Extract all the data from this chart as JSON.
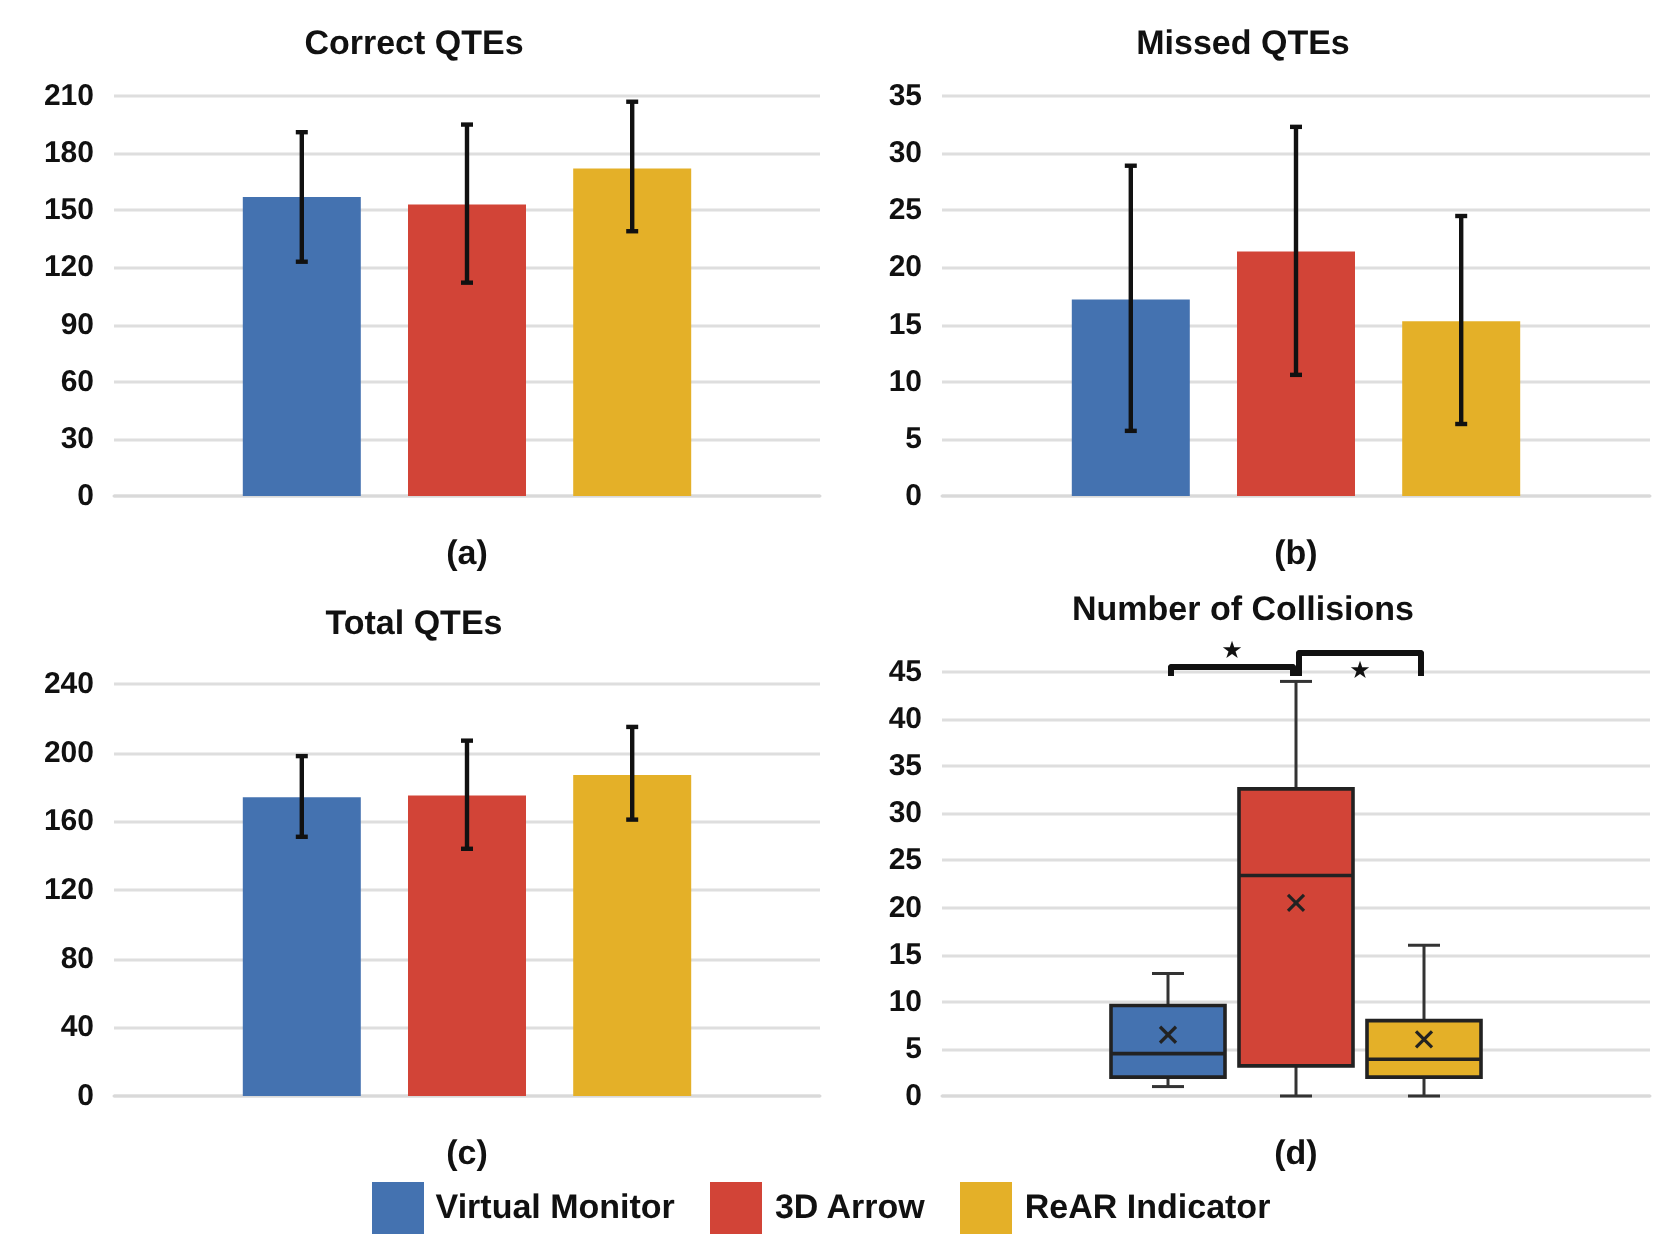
{
  "chart_data": [
    {
      "type": "bar",
      "title": "Correct QTEs",
      "xlabel": "(a)",
      "categories": [
        null
      ],
      "ylim": [
        0,
        210
      ],
      "yticks": [
        0,
        30,
        60,
        90,
        120,
        150,
        180,
        210
      ],
      "grid": "y",
      "legend": "bottom",
      "series": [
        {
          "name": "Virtual Monitor",
          "color": "#4472b0",
          "values": [
            157
          ],
          "errors": [
            [
              123,
              191
            ]
          ]
        },
        {
          "name": "3D Arrow",
          "color": "#d24437",
          "values": [
            153
          ],
          "errors": [
            [
              112,
              195
            ]
          ]
        },
        {
          "name": "ReAR Indicator",
          "color": "#e4b028",
          "values": [
            172
          ],
          "errors": [
            [
              139,
              207
            ]
          ]
        }
      ]
    },
    {
      "type": "bar",
      "title": "Missed QTEs",
      "xlabel": "(b)",
      "categories": [
        null
      ],
      "ylim": [
        0,
        35
      ],
      "yticks": [
        0,
        5,
        10,
        15,
        20,
        25,
        30,
        35
      ],
      "grid": "y",
      "series": [
        {
          "color": "#4472b0",
          "values": [
            17.2
          ],
          "errors": [
            [
              5.7,
              28.9
            ]
          ]
        },
        {
          "color": "#d24437",
          "values": [
            21.4
          ],
          "errors": [
            [
              10.6,
              32.3
            ]
          ]
        },
        {
          "color": "#e4b028",
          "values": [
            15.3
          ],
          "errors": [
            [
              6.3,
              24.5
            ]
          ]
        }
      ]
    },
    {
      "type": "bar",
      "title": "Total QTEs",
      "xlabel": "(c)",
      "categories": [
        null
      ],
      "ylim": [
        0,
        240
      ],
      "yticks": [
        0,
        40,
        80,
        120,
        160,
        200,
        240
      ],
      "grid": "y",
      "series": [
        {
          "color": "#4472b0",
          "values": [
            174
          ],
          "errors": [
            [
              151,
              198
            ]
          ]
        },
        {
          "color": "#d24437",
          "values": [
            175
          ],
          "errors": [
            [
              144,
              207
            ]
          ]
        },
        {
          "color": "#e4b028",
          "values": [
            187
          ],
          "errors": [
            [
              161,
              215
            ]
          ]
        }
      ]
    },
    {
      "type": "box",
      "title": "Number of Collisions",
      "xlabel": "(d)",
      "categories": [
        null
      ],
      "ylim": [
        0,
        45
      ],
      "yticks": [
        0,
        5,
        10,
        15,
        20,
        25,
        30,
        35,
        40,
        45
      ],
      "grid": "y",
      "annotations": [
        "★",
        "★"
      ],
      "series": [
        {
          "color": "#4472b0",
          "boxes": [
            {
              "low": 1,
              "q1": 2,
              "median": 4.5,
              "q3": 9.6,
              "high": 13,
              "mean": 6.5
            }
          ]
        },
        {
          "color": "#d24437",
          "boxes": [
            {
              "low": 0,
              "q1": 3.2,
              "median": 23.4,
              "q3": 32.6,
              "high": 44,
              "mean": 20.5
            }
          ]
        },
        {
          "color": "#e4b028",
          "boxes": [
            {
              "low": 0,
              "q1": 2,
              "median": 3.9,
              "q3": 8,
              "high": 16,
              "mean": 6
            }
          ]
        }
      ]
    }
  ]
}
